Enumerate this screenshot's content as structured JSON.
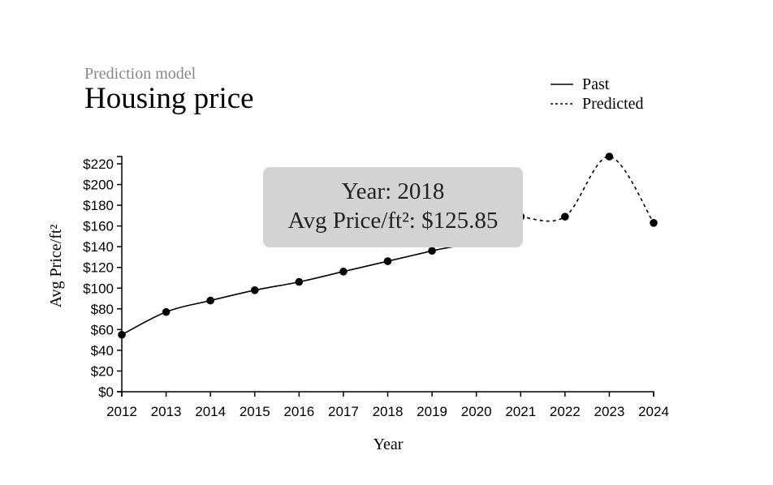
{
  "header": {
    "subtitle": "Prediction model",
    "title": "Housing price"
  },
  "legend": {
    "items": [
      {
        "label": "Past",
        "style": "solid"
      },
      {
        "label": "Predicted",
        "style": "dashed"
      }
    ]
  },
  "tooltip": {
    "line1": "Year: 2018",
    "line2": "Avg Price/ft²: $125.85"
  },
  "chart_data": {
    "type": "line",
    "x": [
      2012,
      2013,
      2014,
      2015,
      2016,
      2017,
      2018,
      2019,
      2020,
      2021,
      2022,
      2023,
      2024
    ],
    "series": [
      {
        "name": "Past",
        "style": "solid",
        "x": [
          2012,
          2013,
          2014,
          2015,
          2016,
          2017,
          2018,
          2019,
          2020,
          2021
        ],
        "values": [
          55,
          77,
          88,
          98,
          106,
          116,
          126,
          136,
          146,
          169
        ]
      },
      {
        "name": "Predicted",
        "style": "dashed",
        "x": [
          2021,
          2022,
          2023,
          2024
        ],
        "values": [
          169,
          169,
          227,
          163
        ]
      }
    ],
    "xlabel": "Year",
    "ylabel": "Avg Price/ft²",
    "xlim": [
      2012,
      2024
    ],
    "ylim": [
      0,
      220
    ],
    "xticks": [
      "2012",
      "2013",
      "2014",
      "2015",
      "2016",
      "2017",
      "2018",
      "2019",
      "2020",
      "2021",
      "2022",
      "2023",
      "2024"
    ],
    "yticks": [
      "$0",
      "$20",
      "$40",
      "$60",
      "$80",
      "$100",
      "$120",
      "$140",
      "$160",
      "$180",
      "$200",
      "$220"
    ],
    "legend_position": "top-right",
    "grid": false
  }
}
